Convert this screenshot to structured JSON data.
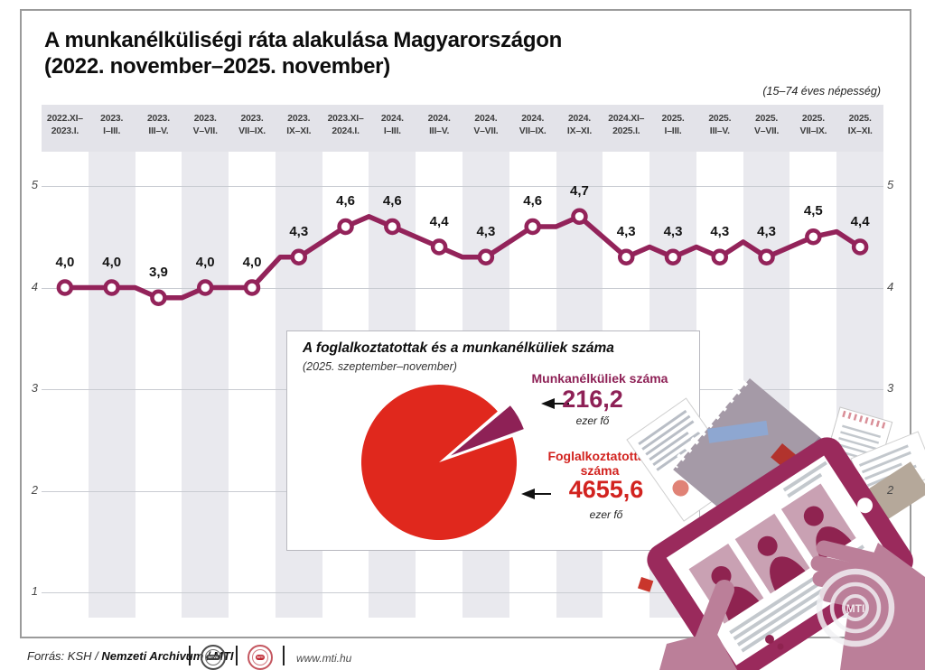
{
  "header": {
    "title": "A munkanélküliségi ráta alakulása Magyarországon\n(2022. november–2025. november)",
    "note": "(15–74 éves népesség)"
  },
  "chart_data": [
    {
      "type": "line",
      "title": "A munkanélküliségi ráta alakulása Magyarországon (2022. november–2025. november)",
      "note": "(15–74 éves népesség)",
      "categories": [
        "2022.XI–\n2023.I.",
        "2023.\nI–III.",
        "2023.\nIII–V.",
        "2023.\nV–VII.",
        "2023.\nVII–IX.",
        "2023.\nIX–XI.",
        "2023.XI–\n2024.I.",
        "2024.\nI–III.",
        "2024.\nIII–V.",
        "2024.\nV–VII.",
        "2024.\nVII–IX.",
        "2024.\nIX–XI.",
        "2024.XI–\n2025.I.",
        "2025.\nI–III.",
        "2025.\nIII–V.",
        "2025.\nV–VII.",
        "2025.\nVII–IX.",
        "2025.\nIX–XI."
      ],
      "values": [
        4.0,
        4.0,
        3.9,
        4.0,
        4.0,
        4.3,
        4.6,
        4.6,
        4.4,
        4.3,
        4.6,
        4.7,
        4.3,
        4.3,
        4.3,
        4.3,
        4.5,
        4.4
      ],
      "value_labels": [
        "4,0",
        "4,0",
        "3,9",
        "4,0",
        "4,0",
        "4,3",
        "4,6",
        "4,6",
        "4,4",
        "4,3",
        "4,6",
        "4,7",
        "4,3",
        "4,3",
        "4,3",
        "4,3",
        "4,5",
        "4,4"
      ],
      "yticks": [
        5,
        4,
        3,
        2,
        1
      ],
      "ylim": [
        1,
        5
      ],
      "line_color": "#93235a",
      "grid": true,
      "legend": "none",
      "intermediate_vertices": [
        {
          "after": 1,
          "frac": 0.5,
          "value": 4.0
        },
        {
          "after": 2,
          "frac": 0.5,
          "value": 3.9
        },
        {
          "after": 4,
          "frac": 0.6,
          "value": 4.3
        },
        {
          "after": 6,
          "frac": 0.5,
          "value": 4.7
        },
        {
          "after": 8,
          "frac": 0.5,
          "value": 4.3
        },
        {
          "after": 10,
          "frac": 0.5,
          "value": 4.6
        },
        {
          "after": 12,
          "frac": 0.5,
          "value": 4.4
        },
        {
          "after": 13,
          "frac": 0.5,
          "value": 4.4
        },
        {
          "after": 14,
          "frac": 0.5,
          "value": 4.45
        },
        {
          "after": 16,
          "frac": 0.5,
          "value": 4.55
        }
      ]
    },
    {
      "type": "pie",
      "title": "A foglalkoztatottak és a munkanélküliek száma",
      "subtitle": "(2025. szeptember–november)",
      "slices": [
        {
          "label": "Foglalkoztatottak száma",
          "value": 4655.6,
          "display": "4655,6",
          "unit": "ezer fő",
          "color": "#e0281d"
        },
        {
          "label": "Munkanélküliek száma",
          "value": 216.2,
          "display": "216,2",
          "unit": "ezer fő",
          "color": "#8e2156"
        }
      ],
      "legend": "annotated-with-arrows"
    }
  ],
  "illustration": {
    "watermark": "MTI"
  },
  "footer": {
    "source_prefix": "Forrás: KSH / ",
    "source_bold": "Nemzeti Archivum / MTI",
    "logos": [
      "MTVA",
      "MTI"
    ],
    "url": "www.mti.hu"
  }
}
